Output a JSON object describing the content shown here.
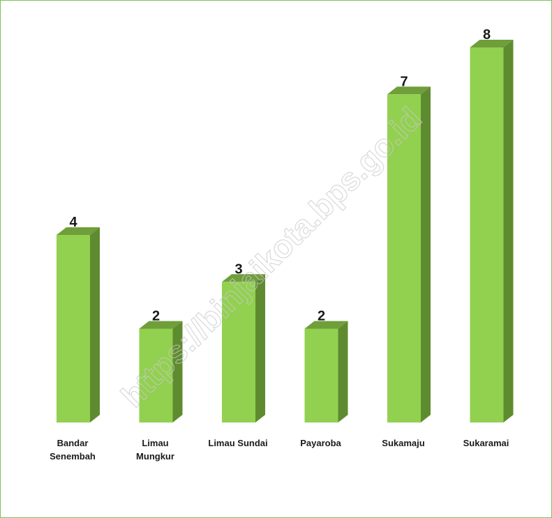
{
  "chart_data": {
    "type": "bar",
    "categories": [
      [
        "Bandar",
        "Senembah"
      ],
      [
        "Limau",
        "Mungkur"
      ],
      [
        "Limau Sundai"
      ],
      [
        "Payaroba"
      ],
      [
        "Sukamaju"
      ],
      [
        "Sukaramai"
      ]
    ],
    "values": [
      4,
      2,
      3,
      2,
      7,
      8
    ],
    "data_labels": [
      "4",
      "2",
      "3",
      "2",
      "7",
      "8"
    ],
    "title": "",
    "xlabel": "",
    "ylabel": "",
    "ylim": [
      0,
      8
    ],
    "grid": false,
    "legend": "none",
    "style": "3d-column"
  },
  "colors": {
    "bar_front": "#92d050",
    "bar_side": "#5f8b30",
    "bar_top": "#6f9e3a",
    "frame_border": "#7fbf5a"
  },
  "watermark": "https://binjaikota.bps.go.id"
}
